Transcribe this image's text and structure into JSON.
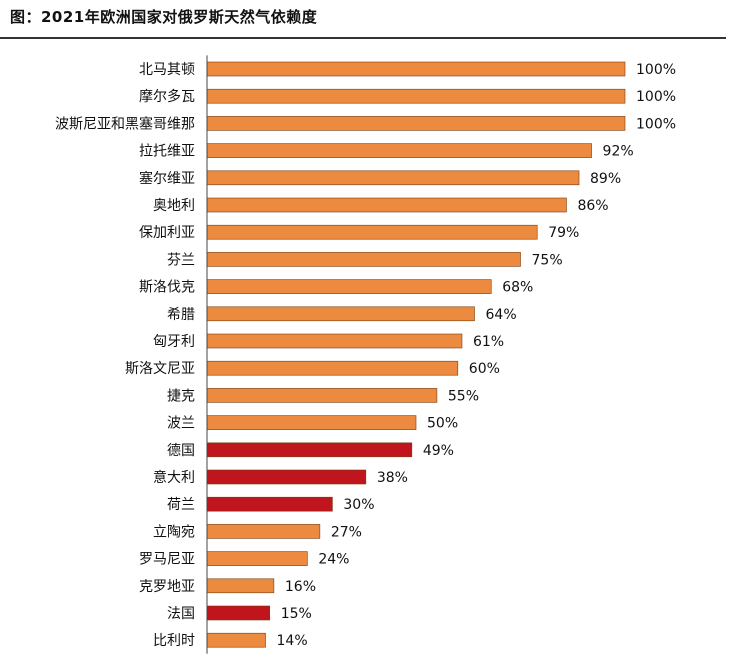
{
  "title": "图：2021年欧洲国家对俄罗斯天然气依赖度",
  "colors": {
    "orange": "#ec8a3f",
    "red": "#c0151d",
    "bar_outline": "#7a3d10",
    "axis": "#444444"
  },
  "chart_data": {
    "type": "bar",
    "orientation": "horizontal",
    "title": "图：2021年欧洲国家对俄罗斯天然气依赖度",
    "xlabel": "",
    "ylabel": "",
    "xlim": [
      0,
      100
    ],
    "grid": false,
    "legend": "none",
    "value_suffix": "%",
    "categories": [
      "北马其顿",
      "摩尔多瓦",
      "波斯尼亚和黑塞哥维那",
      "拉托维亚",
      "塞尔维亚",
      "奥地利",
      "保加利亚",
      "芬兰",
      "斯洛伐克",
      "希腊",
      "匈牙利",
      "斯洛文尼亚",
      "捷克",
      "波兰",
      "德国",
      "意大利",
      "荷兰",
      "立陶宛",
      "罗马尼亚",
      "克罗地亚",
      "法国",
      "比利时"
    ],
    "values": [
      100,
      100,
      100,
      92,
      89,
      86,
      79,
      75,
      68,
      64,
      61,
      60,
      55,
      50,
      49,
      38,
      30,
      27,
      24,
      16,
      15,
      14
    ],
    "data_labels": [
      "100%",
      "100%",
      "100%",
      "92%",
      "89%",
      "86%",
      "79%",
      "75%",
      "68%",
      "64%",
      "61%",
      "60%",
      "55%",
      "50%",
      "49%",
      "38%",
      "30%",
      "27%",
      "24%",
      "16%",
      "15%",
      "14%"
    ],
    "highlight": [
      false,
      false,
      false,
      false,
      false,
      false,
      false,
      false,
      false,
      false,
      false,
      false,
      false,
      false,
      true,
      true,
      true,
      false,
      false,
      false,
      true,
      false
    ]
  }
}
